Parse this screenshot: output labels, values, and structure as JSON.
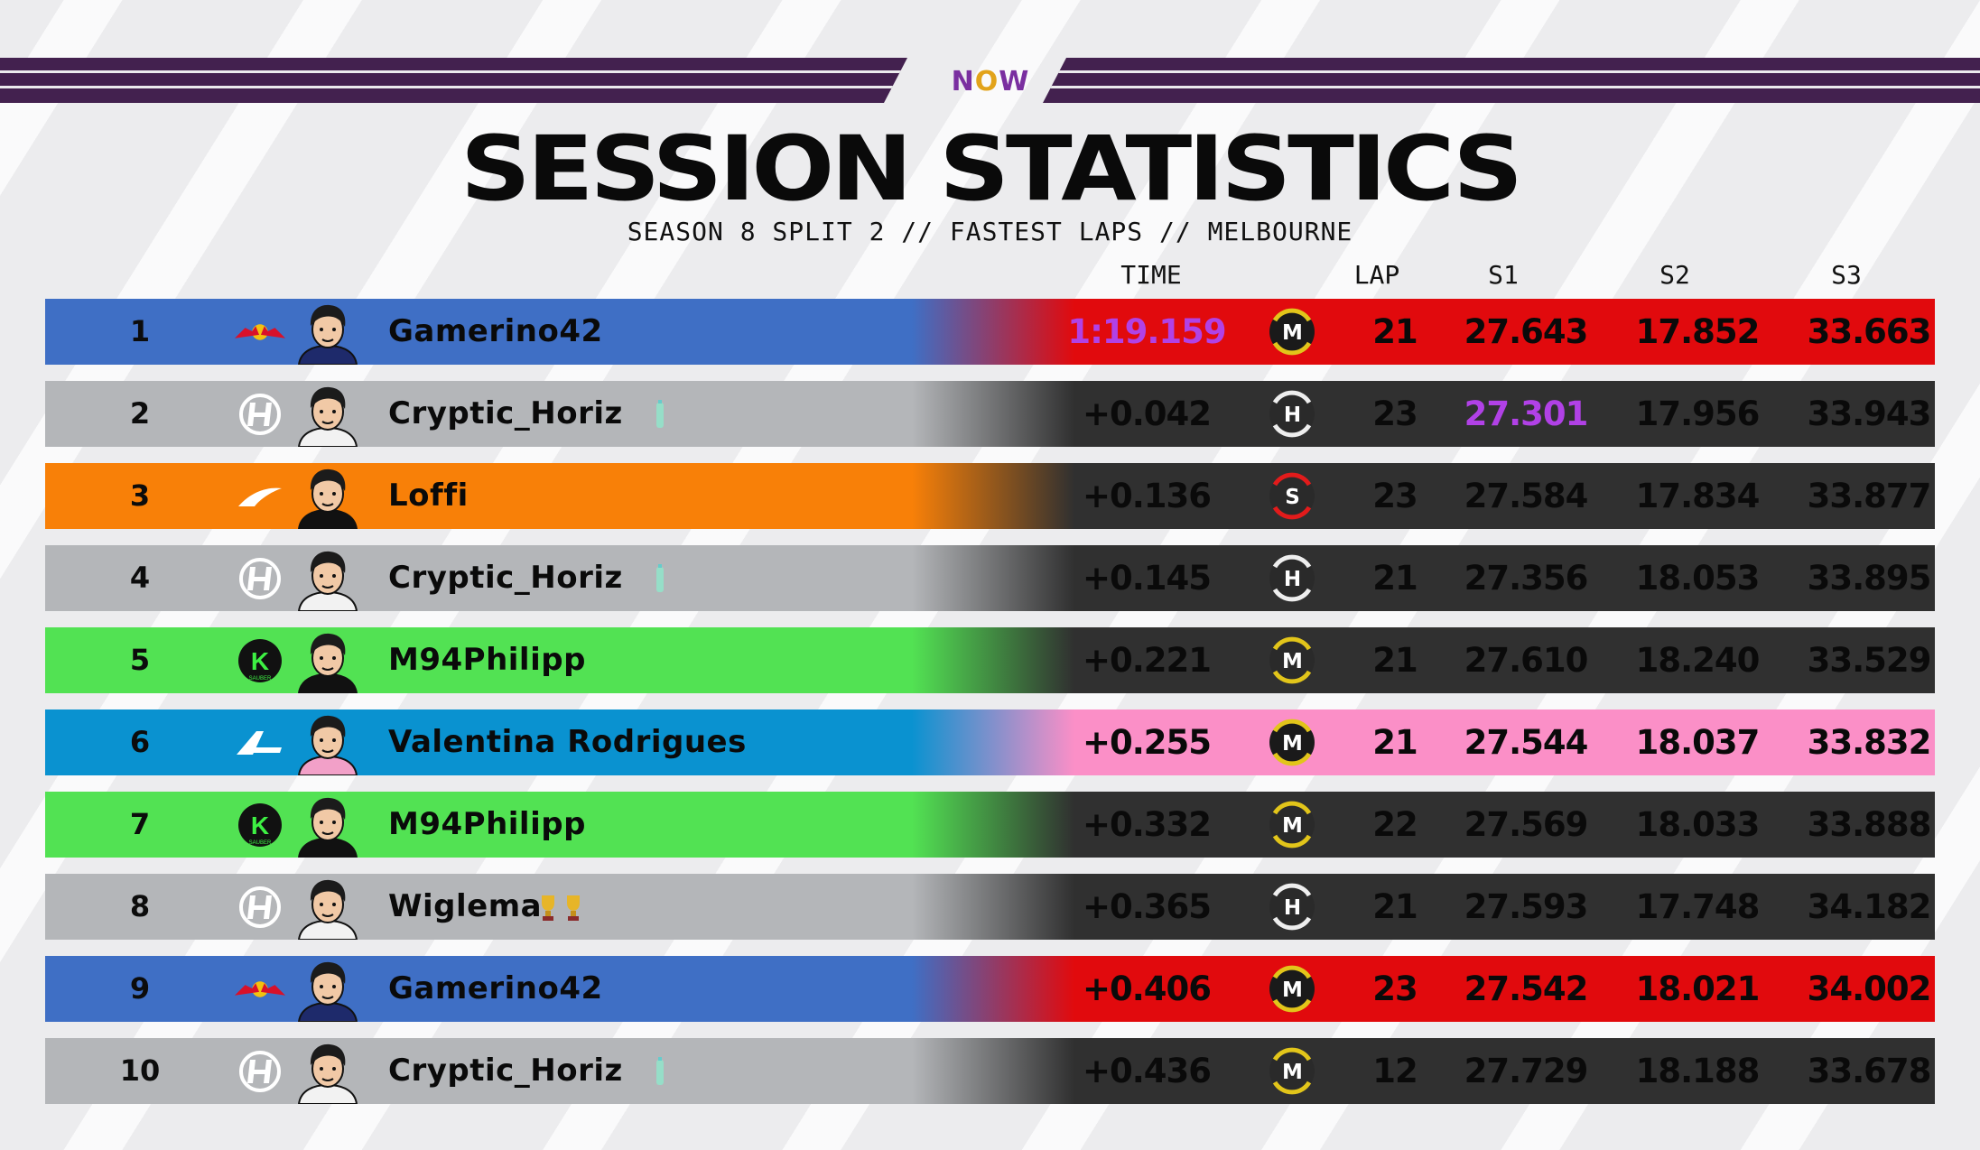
{
  "header": {
    "logo_parts": [
      "N",
      "O",
      "W"
    ],
    "title": "SESSION STATISTICS",
    "subtitle": "SEASON 8 SPLIT 2 // FASTEST LAPS // MELBOURNE"
  },
  "columns": {
    "time": "TIME",
    "lap": "LAP",
    "s1": "S1",
    "s2": "S2",
    "s3": "S3"
  },
  "colors": {
    "redbull": "#3f6fc5",
    "haas": "#b4b6b9",
    "mclaren": "#f88008",
    "sauber": "#52e253",
    "alpine": "#0a92d0",
    "right_red": "#e10a0d",
    "right_dark": "#303030",
    "right_pink": "#fb8fc7",
    "purple": "#b141e6"
  },
  "rows": [
    {
      "pos": "1",
      "team": "redbull",
      "team_icon": "bull-icon",
      "driver": "Gamerino42",
      "flair": "",
      "time": "1:19.159",
      "time_purple": true,
      "tyre": "M",
      "tyre_color": "#e2c51a",
      "tyre_bg": "#1a1a1a",
      "lap": "21",
      "s1": "27.643",
      "s2": "17.852",
      "s3": "33.663",
      "s1_purple": false,
      "right": "red"
    },
    {
      "pos": "2",
      "team": "haas",
      "team_icon": "haas-icon",
      "driver": "Cryptic_Horiz",
      "flair": "bottle",
      "time": "+0.042",
      "time_purple": false,
      "tyre": "H",
      "tyre_color": "#eeeeee",
      "tyre_bg": "#2a2a2a",
      "lap": "23",
      "s1": "27.301",
      "s2": "17.956",
      "s3": "33.943",
      "s1_purple": true,
      "right": "dark"
    },
    {
      "pos": "3",
      "team": "mclaren",
      "team_icon": "mclaren-icon",
      "driver": "Loffi",
      "flair": "",
      "time": "+0.136",
      "time_purple": false,
      "tyre": "S",
      "tyre_color": "#e21b1b",
      "tyre_bg": "#2a2a2a",
      "lap": "23",
      "s1": "27.584",
      "s2": "17.834",
      "s3": "33.877",
      "s1_purple": false,
      "right": "dark"
    },
    {
      "pos": "4",
      "team": "haas",
      "team_icon": "haas-icon",
      "driver": "Cryptic_Horiz",
      "flair": "bottle",
      "time": "+0.145",
      "time_purple": false,
      "tyre": "H",
      "tyre_color": "#eeeeee",
      "tyre_bg": "#2a2a2a",
      "lap": "21",
      "s1": "27.356",
      "s2": "18.053",
      "s3": "33.895",
      "s1_purple": false,
      "right": "dark"
    },
    {
      "pos": "5",
      "team": "sauber",
      "team_icon": "kick-icon",
      "driver": "M94Philipp",
      "flair": "",
      "time": "+0.221",
      "time_purple": false,
      "tyre": "M",
      "tyre_color": "#e2c51a",
      "tyre_bg": "#2a2a2a",
      "lap": "21",
      "s1": "27.610",
      "s2": "18.240",
      "s3": "33.529",
      "s1_purple": false,
      "right": "dark"
    },
    {
      "pos": "6",
      "team": "alpine",
      "team_icon": "alpine-icon",
      "driver": "Valentina Rodrigues",
      "flair": "",
      "time": "+0.255",
      "time_purple": false,
      "tyre": "M",
      "tyre_color": "#e2c51a",
      "tyre_bg": "#1a1a1a",
      "lap": "21",
      "s1": "27.544",
      "s2": "18.037",
      "s3": "33.832",
      "s1_purple": false,
      "right": "pink"
    },
    {
      "pos": "7",
      "team": "sauber",
      "team_icon": "kick-icon",
      "driver": "M94Philipp",
      "flair": "",
      "time": "+0.332",
      "time_purple": false,
      "tyre": "M",
      "tyre_color": "#e2c51a",
      "tyre_bg": "#2a2a2a",
      "lap": "22",
      "s1": "27.569",
      "s2": "18.033",
      "s3": "33.888",
      "s1_purple": false,
      "right": "dark"
    },
    {
      "pos": "8",
      "team": "haas",
      "team_icon": "haas-icon",
      "driver": "Wiglema",
      "flair": "trophies",
      "time": "+0.365",
      "time_purple": false,
      "tyre": "H",
      "tyre_color": "#eeeeee",
      "tyre_bg": "#2a2a2a",
      "lap": "21",
      "s1": "27.593",
      "s2": "17.748",
      "s3": "34.182",
      "s1_purple": false,
      "right": "dark"
    },
    {
      "pos": "9",
      "team": "redbull",
      "team_icon": "bull-icon",
      "driver": "Gamerino42",
      "flair": "",
      "time": "+0.406",
      "time_purple": false,
      "tyre": "M",
      "tyre_color": "#e2c51a",
      "tyre_bg": "#1a1a1a",
      "lap": "23",
      "s1": "27.542",
      "s2": "18.021",
      "s3": "34.002",
      "s1_purple": false,
      "right": "red"
    },
    {
      "pos": "10",
      "team": "haas",
      "team_icon": "haas-icon",
      "driver": "Cryptic_Horiz",
      "flair": "bottle",
      "time": "+0.436",
      "time_purple": false,
      "tyre": "M",
      "tyre_color": "#e2c51a",
      "tyre_bg": "#2a2a2a",
      "lap": "12",
      "s1": "27.729",
      "s2": "18.188",
      "s3": "33.678",
      "s1_purple": false,
      "right": "dark"
    }
  ]
}
